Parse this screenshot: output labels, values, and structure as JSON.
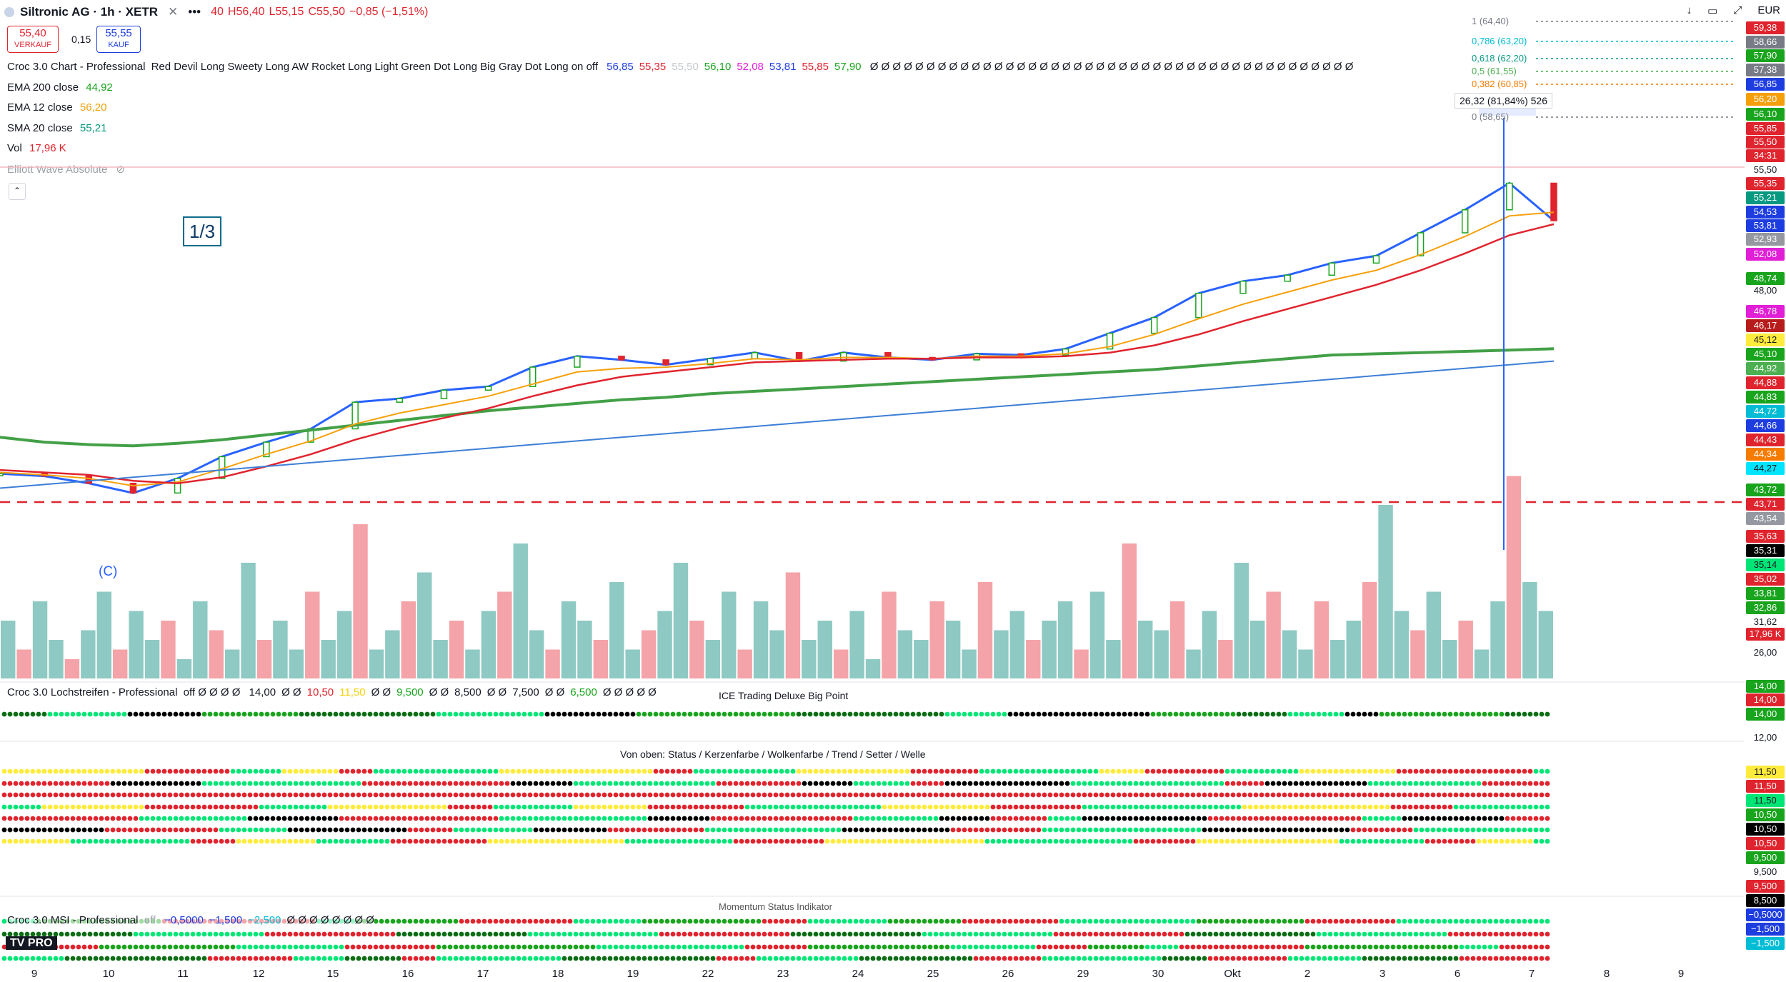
{
  "header": {
    "title": "Siltronic AG · 1h · XETR",
    "open_prefix": "40",
    "high": "H56,40",
    "low": "L55,15",
    "close": "C55,50",
    "change": "−0,85 (−1,51%)",
    "currency": "EUR"
  },
  "trade": {
    "sell_price": "55,40",
    "sell_label": "VERKAUF",
    "spread": "0,15",
    "buy_price": "55,55",
    "buy_label": "KAUF"
  },
  "legend": {
    "croc_title": "Croc 3.0 Chart - Professional",
    "croc_params": "Red Devil Long Sweety Long AW Rocket Long Light Green Dot Long Big Gray Dot Long on off",
    "croc_values": [
      {
        "v": "56,85",
        "color": "#1e3de0"
      },
      {
        "v": "55,35",
        "color": "#e0242e"
      },
      {
        "v": "55,50",
        "color": "#c4c8cc"
      },
      {
        "v": "56,10",
        "color": "#19a41d"
      },
      {
        "v": "52,08",
        "color": "#e11fd6"
      },
      {
        "v": "53,81",
        "color": "#1e3de0"
      },
      {
        "v": "55,85",
        "color": "#e0242e"
      },
      {
        "v": "57,90",
        "color": "#19a41d"
      }
    ],
    "croc_tail": "Ø Ø Ø Ø Ø Ø Ø Ø Ø Ø Ø Ø Ø Ø Ø Ø Ø Ø Ø Ø Ø Ø Ø Ø Ø Ø Ø Ø Ø Ø Ø Ø Ø Ø Ø Ø Ø Ø Ø Ø Ø Ø Ø",
    "ema200_label": "EMA 200 close",
    "ema200_val": "44,92",
    "ema12_label": "EMA 12 close",
    "ema12_val": "56,20",
    "sma20_label": "SMA 20 close",
    "sma20_val": "55,21",
    "vol_label": "Vol",
    "vol_val": "17,96 K",
    "elliott_label": "Elliott Wave Absolute"
  },
  "annotations": {
    "wave_box": "1/3",
    "wave_c": "(C)",
    "measure": "26,32 (81,84%) 526",
    "fib": [
      {
        "t": "1 (64,40)",
        "c": "#787b86"
      },
      {
        "t": "0,786 (63,20)",
        "c": "#00bcd4"
      },
      {
        "t": "0,618 (62,20)",
        "c": "#089981"
      },
      {
        "t": "0,5 (61,55)",
        "c": "#4caf50"
      },
      {
        "t": "0,382 (60,85)",
        "c": "#f57c00"
      },
      {
        "t": "0 (58,65)",
        "c": "#787b86"
      }
    ]
  },
  "price_axis": [
    {
      "t": "59,38",
      "bg": "#e0242e"
    },
    {
      "t": "58,66",
      "bg": "#787b86"
    },
    {
      "t": "57,90",
      "bg": "#19a41d"
    },
    {
      "t": "57,38",
      "bg": "#787b86"
    },
    {
      "t": "56,85",
      "bg": "#1e3de0"
    },
    {
      "t": "56,20",
      "bg": "#f5a00a"
    },
    {
      "t": "56,10",
      "bg": "#19a41d"
    },
    {
      "t": "55,85",
      "bg": "#e0242e"
    },
    {
      "t": "55,50",
      "bg": "#e0242e"
    },
    {
      "t": "34:31",
      "bg": "#e0242e"
    },
    {
      "t": "55,50",
      "bg": "none"
    },
    {
      "t": "55,35",
      "bg": "#e0242e"
    },
    {
      "t": "55,21",
      "bg": "#089981"
    },
    {
      "t": "54,53",
      "bg": "#1e3de0"
    },
    {
      "t": "53,81",
      "bg": "#1e3de0"
    },
    {
      "t": "52,93",
      "bg": "#9598a1"
    },
    {
      "t": "52,08",
      "bg": "#e11fd6"
    },
    {
      "t": "48,74",
      "bg": "#19a41d"
    },
    {
      "t": "48,00",
      "bg": "none"
    },
    {
      "t": "46,78",
      "bg": "#e11fd6"
    },
    {
      "t": "46,17",
      "bg": "#b71c1c"
    },
    {
      "t": "45,12",
      "bg": "#ffeb3b"
    },
    {
      "t": "45,10",
      "bg": "#19a41d"
    },
    {
      "t": "44,92",
      "bg": "#4caf50"
    },
    {
      "t": "44,88",
      "bg": "#e0242e"
    },
    {
      "t": "44,83",
      "bg": "#19a41d"
    },
    {
      "t": "44,72",
      "bg": "#00bcd4"
    },
    {
      "t": "44,66",
      "bg": "#1e3de0"
    },
    {
      "t": "44,43",
      "bg": "#e0242e"
    },
    {
      "t": "44,34",
      "bg": "#f57c00"
    },
    {
      "t": "44,27",
      "bg": "#00e5ff"
    },
    {
      "t": "43,72",
      "bg": "#19a41d"
    },
    {
      "t": "43,71",
      "bg": "#e0242e"
    },
    {
      "t": "43,54",
      "bg": "#9598a1"
    },
    {
      "t": "35,63",
      "bg": "#e0242e"
    },
    {
      "t": "35,31",
      "bg": "#000000"
    },
    {
      "t": "35,14",
      "bg": "#00e676"
    },
    {
      "t": "35,02",
      "bg": "#e0242e"
    },
    {
      "t": "33,81",
      "bg": "#19a41d"
    },
    {
      "t": "32,86",
      "bg": "#19a41d"
    },
    {
      "t": "31,62",
      "bg": "none"
    },
    {
      "t": "17,96 K",
      "bg": "#e0242e"
    },
    {
      "t": "26,00",
      "bg": "none"
    },
    {
      "t": "14,00",
      "bg": "#19a41d"
    },
    {
      "t": "14,00",
      "bg": "#e0242e"
    },
    {
      "t": "14,00",
      "bg": "#19a41d"
    },
    {
      "t": "12,00",
      "bg": "none"
    },
    {
      "t": "11,50",
      "bg": "#ffeb3b"
    },
    {
      "t": "11,50",
      "bg": "#e0242e"
    },
    {
      "t": "11,50",
      "bg": "#00e676"
    },
    {
      "t": "10,50",
      "bg": "#19a41d"
    },
    {
      "t": "10,50",
      "bg": "#000000"
    },
    {
      "t": "10,50",
      "bg": "#e0242e"
    },
    {
      "t": "9,500",
      "bg": "#19a41d"
    },
    {
      "t": "9,500",
      "bg": "none"
    },
    {
      "t": "9,500",
      "bg": "#e0242e"
    },
    {
      "t": "8,500",
      "bg": "#000000"
    },
    {
      "t": "−0,5000",
      "bg": "#1e3de0"
    },
    {
      "t": "−1,500",
      "bg": "#1e3de0"
    },
    {
      "t": "−1,500",
      "bg": "#00bcd4"
    }
  ],
  "panels": {
    "lochstreifen_title": "Croc 3.0 Lochstreifen - Professional",
    "lochstreifen_params": "off Ø Ø Ø Ø",
    "lochstreifen_values": [
      {
        "v": "14,00",
        "c": "#131722"
      },
      {
        "v": "Ø Ø",
        "c": "#131722"
      },
      {
        "v": "10,50",
        "c": "#e0242e"
      },
      {
        "v": "11,50",
        "c": "#f5d20a"
      },
      {
        "v": "Ø Ø",
        "c": "#131722"
      },
      {
        "v": "9,500",
        "c": "#19a41d"
      },
      {
        "v": "Ø Ø",
        "c": "#131722"
      },
      {
        "v": "8,500",
        "c": "#131722"
      },
      {
        "v": "Ø Ø",
        "c": "#131722"
      },
      {
        "v": "7,500",
        "c": "#131722"
      },
      {
        "v": "Ø Ø",
        "c": "#131722"
      },
      {
        "v": "6,500",
        "c": "#19a41d"
      },
      {
        "v": "Ø Ø Ø Ø Ø",
        "c": "#131722"
      }
    ],
    "ice_title": "ICE Trading Deluxe Big Point",
    "status_title": "Von oben: Status / Kerzenfarbe / Wolkenfarbe / Trend / Setter / Welle",
    "msi_title": "Croc 3.0 MSI - Professional",
    "msi_params": "off",
    "msi_values": [
      {
        "v": "−0,5000",
        "c": "#1e3de0"
      },
      {
        "v": "−1,500",
        "c": "#1e3de0"
      },
      {
        "v": "−2,500",
        "c": "#00bcd4"
      },
      {
        "v": "Ø Ø Ø Ø Ø Ø Ø Ø",
        "c": "#131722"
      }
    ],
    "momentum_title": "Momentum Status Indikator",
    "logo": "TV PRO"
  },
  "chart_data": {
    "type": "line",
    "title": "Siltronic AG · 1h · XETR",
    "x_ticks": [
      "9",
      "10",
      "11",
      "12",
      "15",
      "16",
      "17",
      "18",
      "19",
      "22",
      "23",
      "24",
      "25",
      "26",
      "29",
      "30",
      "Okt",
      "2",
      "3",
      "6",
      "7",
      "8",
      "9"
    ],
    "ylim": [
      28,
      64
    ],
    "series": [
      {
        "name": "Close",
        "values": [
          34.6,
          34.4,
          33.8,
          33.0,
          34.2,
          36.0,
          37.2,
          38.3,
          40.5,
          40.8,
          41.5,
          41.8,
          43.4,
          44.3,
          44.0,
          43.6,
          44.1,
          44.6,
          43.9,
          44.6,
          44.2,
          44.0,
          44.5,
          44.4,
          44.9,
          46.2,
          47.5,
          49.5,
          50.5,
          51.0,
          52.0,
          52.6,
          54.5,
          56.4,
          58.6,
          55.5
        ]
      },
      {
        "name": "EMA 200 close",
        "values": [
          37.6,
          37.2,
          37.0,
          36.9,
          37.1,
          37.4,
          37.8,
          38.2,
          38.6,
          39.0,
          39.4,
          39.8,
          40.1,
          40.4,
          40.7,
          40.9,
          41.2,
          41.4,
          41.6,
          41.8,
          42.0,
          42.2,
          42.4,
          42.6,
          42.8,
          43.0,
          43.2,
          43.5,
          43.8,
          44.1,
          44.4,
          44.5,
          44.6,
          44.7,
          44.8,
          44.92
        ]
      },
      {
        "name": "EMA 12 close",
        "values": [
          34.7,
          34.5,
          34.2,
          33.6,
          33.9,
          35.0,
          36.2,
          37.3,
          38.7,
          39.6,
          40.3,
          41.0,
          42.0,
          43.0,
          43.3,
          43.4,
          43.7,
          44.1,
          44.0,
          44.2,
          44.2,
          44.1,
          44.3,
          44.3,
          44.5,
          45.1,
          46.1,
          47.4,
          48.6,
          49.6,
          50.6,
          51.4,
          52.7,
          54.2,
          55.9,
          56.2
        ]
      },
      {
        "name": "SMA 20 close",
        "values": [
          34.9,
          34.7,
          34.5,
          34.0,
          33.8,
          34.3,
          35.2,
          36.2,
          37.4,
          38.4,
          39.2,
          40.0,
          41.0,
          41.9,
          42.6,
          43.0,
          43.4,
          43.8,
          43.9,
          44.0,
          44.1,
          44.1,
          44.2,
          44.2,
          44.3,
          44.6,
          45.2,
          46.1,
          47.2,
          48.2,
          49.2,
          50.2,
          51.4,
          52.8,
          54.3,
          55.21
        ]
      },
      {
        "name": "Trendline",
        "values": [
          33.4,
          33.7,
          34.0,
          34.3,
          34.6,
          34.9,
          35.2,
          35.5,
          35.8,
          36.1,
          36.4,
          36.7,
          37.0,
          37.3,
          37.6,
          37.9,
          38.2,
          38.5,
          38.8,
          39.1,
          39.4,
          39.7,
          40.0,
          40.3,
          40.6,
          40.9,
          41.2,
          41.5,
          41.8,
          42.1,
          42.4,
          42.7,
          43.0,
          43.3,
          43.6,
          43.9
        ]
      }
    ],
    "volume_series": [
      6,
      3,
      8,
      4,
      2,
      5,
      9,
      3,
      7,
      4,
      6,
      2,
      8,
      5,
      3,
      12,
      4,
      6,
      3,
      9,
      4,
      7,
      16,
      3,
      5,
      8,
      11,
      4,
      6,
      3,
      7,
      9,
      14,
      5,
      3,
      8,
      6,
      4,
      10,
      3,
      5,
      7,
      12,
      6,
      4,
      9,
      3,
      8,
      5,
      11,
      4,
      6,
      3,
      7,
      2,
      9,
      5,
      4,
      8,
      6,
      3,
      10,
      5,
      7,
      4,
      6,
      8,
      3,
      9,
      4,
      14,
      6,
      5,
      8,
      3,
      7,
      4,
      12,
      6,
      9,
      5,
      3,
      8,
      4,
      6,
      10,
      18,
      7,
      5,
      9,
      4,
      6,
      3,
      8,
      21,
      10,
      7
    ]
  }
}
